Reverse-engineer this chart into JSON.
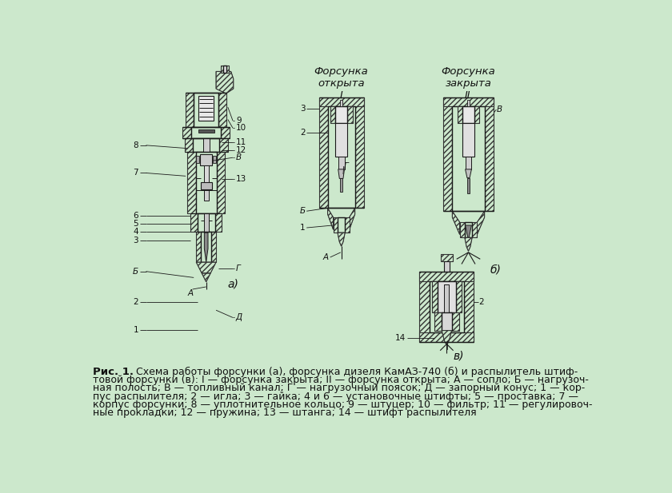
{
  "bg_color": "#cce8cc",
  "line_color": "#1a1a1a",
  "hatch_color": "#333333",
  "text_color": "#111111",
  "caption_bold": "Рис. 1.",
  "caption_lines": [
    "   Схема работы форсунки (а), форсунка дизеля КамАЗ-740 (б) и распылитель штиф-",
    "товой форсунки (в): I — форсунка закрыта; II — форсунка открыта; А — сопло; Б — нагрузоч-",
    "ная полость; В — топливный канал; Г — нагрузочный поясок; Д — запорный конус; 1 — кор-",
    "пус распылителя; 2 — игла; 3 — гайка; 4 и 6 — установочные штифты; 5 — проставка; 7 —",
    "корпус форсунки; 8 — уплотнительное кольцо; 9 — штуцер; 10 — фильтр; 11 — регулировоч-",
    "ные прокладки; 12 — пружина; 13 — штанга; 14 — штифт распылителя"
  ],
  "title_open": "Форсунка\nоткрыта",
  "title_closed": "Форсунка\nзакрыта",
  "roman_I": "I",
  "roman_II": "II",
  "label_a": "а)",
  "label_b": "б)",
  "label_v": "в)"
}
